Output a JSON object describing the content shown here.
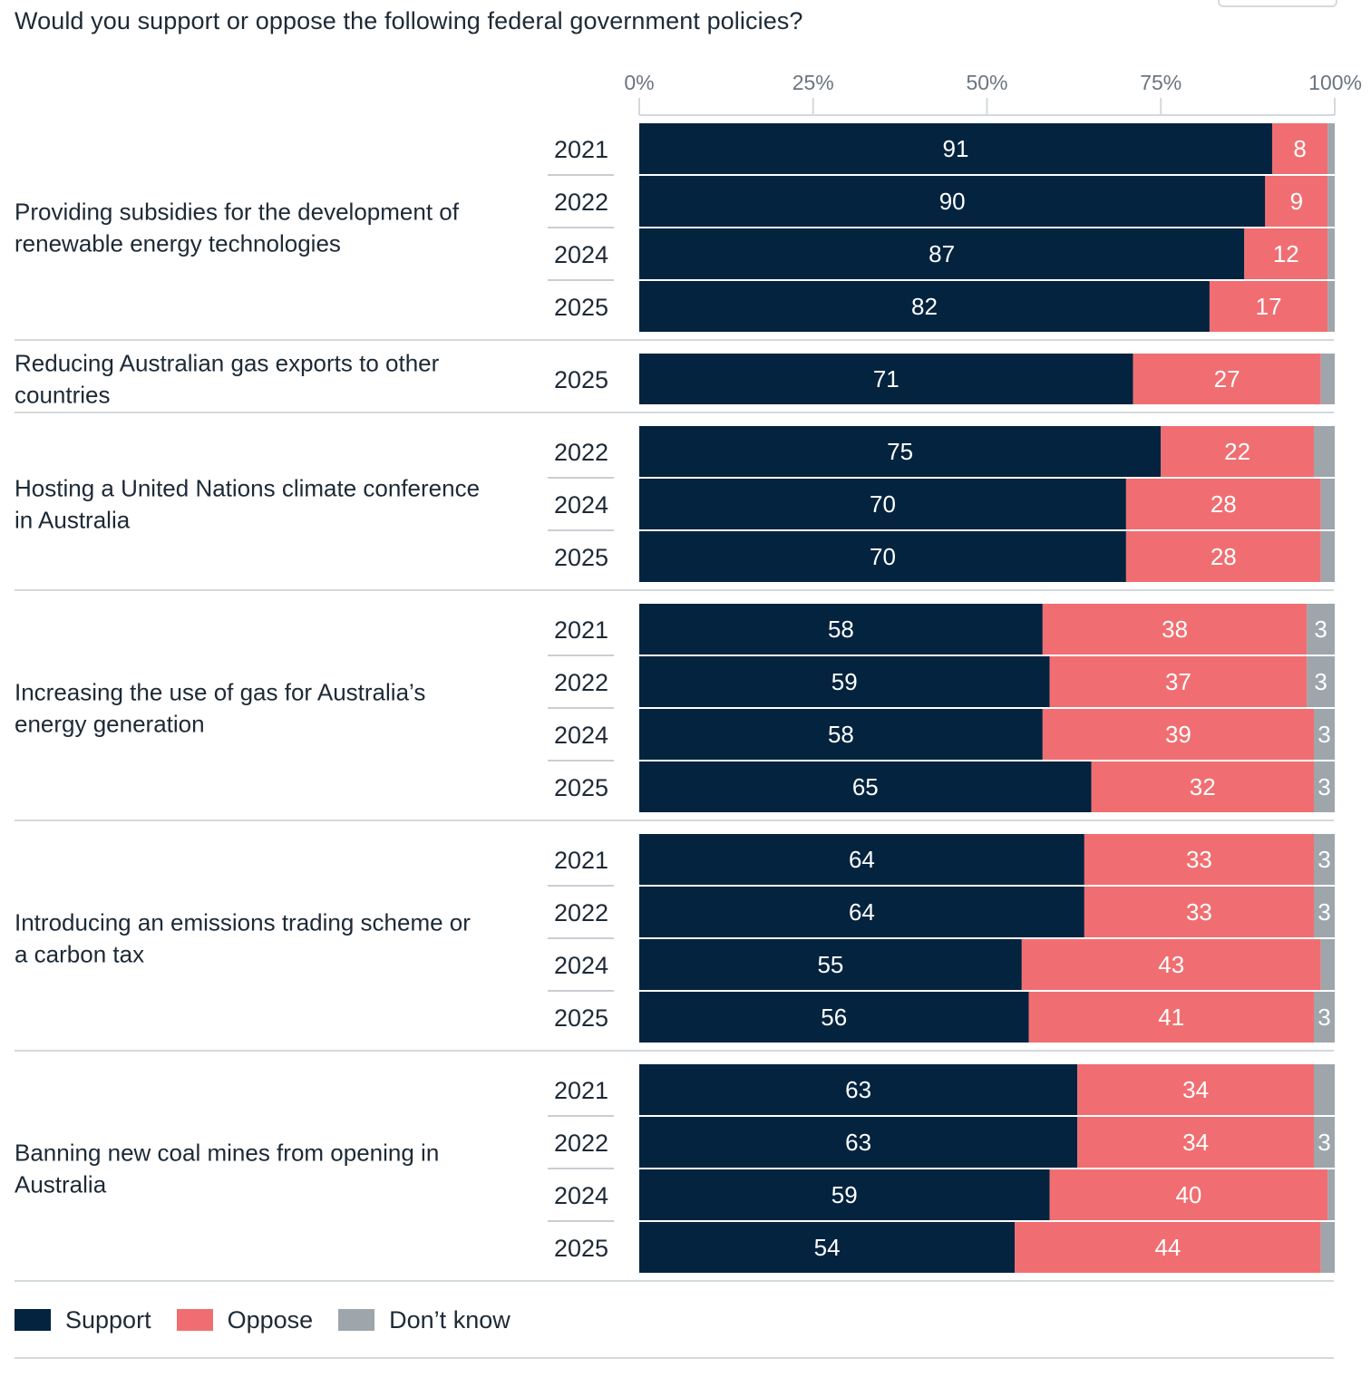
{
  "title": "Would you support or oppose the following federal government policies?",
  "chart_data": {
    "type": "bar",
    "orientation": "horizontal",
    "stacked": true,
    "xlim": [
      0,
      100
    ],
    "x_ticks": [
      "0%",
      "25%",
      "50%",
      "75%",
      "100%"
    ],
    "series": [
      {
        "name": "Support",
        "color": "#03233f"
      },
      {
        "name": "Oppose",
        "color": "#f06e71"
      },
      {
        "name": "Don’t know",
        "color": "#9ea6ac"
      }
    ],
    "groups": [
      {
        "label": "Providing subsidies for the development of renewable energy technologies",
        "rows": [
          {
            "year": "2021",
            "values": [
              91,
              8,
              1
            ],
            "labels": [
              "91",
              "8",
              ""
            ]
          },
          {
            "year": "2022",
            "values": [
              90,
              9,
              2
            ],
            "labels": [
              "90",
              "9",
              ""
            ]
          },
          {
            "year": "2024",
            "values": [
              87,
              12,
              1
            ],
            "labels": [
              "87",
              "12",
              ""
            ]
          },
          {
            "year": "2025",
            "values": [
              82,
              17,
              1
            ],
            "labels": [
              "82",
              "17",
              ""
            ]
          }
        ]
      },
      {
        "label": "Reducing Australian gas exports to other countries",
        "rows": [
          {
            "year": "2025",
            "values": [
              71,
              27,
              2
            ],
            "labels": [
              "71",
              "27",
              ""
            ]
          }
        ]
      },
      {
        "label": "Hosting a United Nations climate conference in Australia",
        "rows": [
          {
            "year": "2022",
            "values": [
              75,
              22,
              2
            ],
            "labels": [
              "75",
              "22",
              ""
            ]
          },
          {
            "year": "2024",
            "values": [
              70,
              28,
              2
            ],
            "labels": [
              "70",
              "28",
              ""
            ]
          },
          {
            "year": "2025",
            "values": [
              70,
              28,
              2
            ],
            "labels": [
              "70",
              "28",
              ""
            ]
          }
        ]
      },
      {
        "label": "Increasing the use of gas for Australia’s energy generation",
        "rows": [
          {
            "year": "2021",
            "values": [
              58,
              38,
              3
            ],
            "labels": [
              "58",
              "38",
              "3"
            ]
          },
          {
            "year": "2022",
            "values": [
              59,
              37,
              3
            ],
            "labels": [
              "59",
              "37",
              "3"
            ]
          },
          {
            "year": "2024",
            "values": [
              58,
              39,
              3
            ],
            "labels": [
              "58",
              "39",
              "3"
            ]
          },
          {
            "year": "2025",
            "values": [
              65,
              32,
              3
            ],
            "labels": [
              "65",
              "32",
              "3"
            ]
          }
        ]
      },
      {
        "label": "Introducing an emissions trading scheme or a carbon tax",
        "rows": [
          {
            "year": "2021",
            "values": [
              64,
              33,
              3
            ],
            "labels": [
              "64",
              "33",
              "3"
            ]
          },
          {
            "year": "2022",
            "values": [
              64,
              33,
              3
            ],
            "labels": [
              "64",
              "33",
              "3"
            ]
          },
          {
            "year": "2024",
            "values": [
              55,
              43,
              2
            ],
            "labels": [
              "55",
              "43",
              ""
            ]
          },
          {
            "year": "2025",
            "values": [
              56,
              41,
              3
            ],
            "labels": [
              "56",
              "41",
              "3"
            ]
          }
        ]
      },
      {
        "label": "Banning new coal mines from opening in Australia",
        "rows": [
          {
            "year": "2021",
            "values": [
              63,
              34,
              2
            ],
            "labels": [
              "63",
              "34",
              ""
            ]
          },
          {
            "year": "2022",
            "values": [
              63,
              34,
              3
            ],
            "labels": [
              "63",
              "34",
              "3"
            ]
          },
          {
            "year": "2024",
            "values": [
              59,
              40,
              1
            ],
            "labels": [
              "59",
              "40",
              ""
            ]
          },
          {
            "year": "2025",
            "values": [
              54,
              44,
              2
            ],
            "labels": [
              "54",
              "44",
              ""
            ]
          }
        ]
      }
    ]
  },
  "legend": {
    "support": "Support",
    "oppose": "Oppose",
    "dont_know": "Don’t know"
  }
}
